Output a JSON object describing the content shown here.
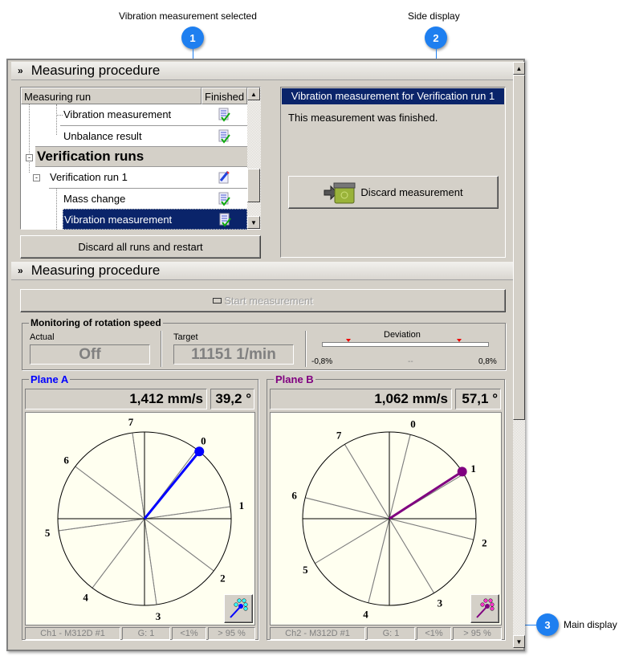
{
  "callouts": [
    {
      "number": "1",
      "label": "Vibration measurement selected"
    },
    {
      "number": "2",
      "label": "Side display"
    },
    {
      "number": "3",
      "label": "Main display"
    }
  ],
  "top_section": {
    "title": "Measuring procedure",
    "tree": {
      "columns": [
        "Measuring run",
        "Finished"
      ],
      "rows": [
        {
          "label": "Vibration measurement",
          "status": "finished"
        },
        {
          "label": "Unbalance result",
          "status": "finished"
        },
        {
          "label": "Verification runs",
          "status": "group"
        },
        {
          "label": "Verification run 1",
          "status": "in-progress"
        },
        {
          "label": "Mass change",
          "status": "finished"
        },
        {
          "label": "Vibration measurement",
          "status": "finished",
          "selected": true
        }
      ]
    },
    "discard_all_label": "Discard all runs and restart",
    "side_display": {
      "title": "Vibration measurement for Verification run 1",
      "message": "This measurement was finished.",
      "discard_label": "Discard measurement"
    }
  },
  "main_section": {
    "title": "Measuring procedure",
    "start_label": "Start measurement",
    "monitoring": {
      "title": "Monitoring of rotation speed",
      "actual_label": "Actual",
      "actual_value": "Off",
      "target_label": "Target",
      "target_value": "11151 1/min",
      "deviation_label": "Deviation",
      "deviation_min": "-0,8%",
      "deviation_max": "0,8%",
      "deviation_value": "--"
    },
    "planes": [
      {
        "title": "Plane A",
        "color": "#0000ff",
        "magnitude": "1,412 mm/s",
        "angle": "39,2 °",
        "angle_deg": 39.2,
        "label_offset_deg": 37,
        "labels": [
          "0",
          "1",
          "2",
          "3",
          "4",
          "5",
          "6",
          "7"
        ],
        "status": [
          "Ch1 - M312D #1",
          "G: 1",
          "<1%",
          "> 95 %"
        ]
      },
      {
        "title": "Plane B",
        "color": "#800080",
        "magnitude": "1,062 mm/s",
        "angle": "57,1 °",
        "angle_deg": 57.1,
        "label_offset_deg": 14,
        "labels": [
          "0",
          "1",
          "2",
          "3",
          "4",
          "5",
          "6",
          "7"
        ],
        "status": [
          "Ch2 - M312D #1",
          "G: 1",
          "<1%",
          "> 95 %"
        ]
      }
    ]
  },
  "colors": {
    "selection": "#0a246a",
    "panel": "#d4d0c8",
    "callout": "#1e7ff0"
  }
}
